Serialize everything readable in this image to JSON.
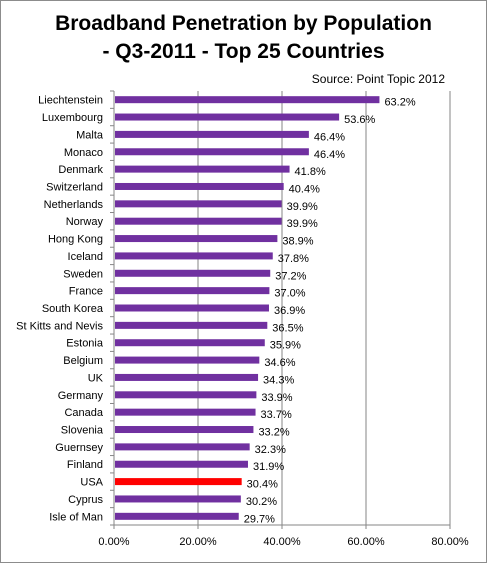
{
  "chart_data": {
    "type": "bar",
    "orientation": "horizontal",
    "title_line1": "Broadband Penetration by Population",
    "title_line2": "- Q3-2011 - Top 25 Countries",
    "source": "Source: Point Topic 2012",
    "categories": [
      "Liechtenstein",
      "Luxembourg",
      "Malta",
      "Monaco",
      "Denmark",
      "Switzerland",
      "Netherlands",
      "Norway",
      "Hong Kong",
      "Iceland",
      "Sweden",
      "France",
      "South Korea",
      "St Kitts and Nevis",
      "Estonia",
      "Belgium",
      "UK",
      "Germany",
      "Canada",
      "Slovenia",
      "Guernsey",
      "Finland",
      "USA",
      "Cyprus",
      "Isle of Man"
    ],
    "values": [
      63.2,
      53.6,
      46.4,
      46.4,
      41.8,
      40.4,
      39.9,
      39.9,
      38.9,
      37.8,
      37.2,
      37.0,
      36.9,
      36.5,
      35.9,
      34.6,
      34.3,
      33.9,
      33.7,
      33.2,
      32.3,
      31.9,
      30.4,
      30.2,
      29.7
    ],
    "value_labels": [
      "63.2%",
      "53.6%",
      "46.4%",
      "46.4%",
      "41.8%",
      "40.4%",
      "39.9%",
      "39.9%",
      "38.9%",
      "37.8%",
      "37.2%",
      "37.0%",
      "36.9%",
      "36.5%",
      "35.9%",
      "34.6%",
      "34.3%",
      "33.9%",
      "33.7%",
      "33.2%",
      "32.3%",
      "31.9%",
      "30.4%",
      "30.2%",
      "29.7%"
    ],
    "x_ticks": [
      "0.00%",
      "20.00%",
      "40.00%",
      "60.00%",
      "80.00%"
    ],
    "xlim": [
      0,
      80
    ],
    "grid": true,
    "highlight": "USA",
    "colors": {
      "bar": "#7030a0",
      "highlight": "#ff0000",
      "grid": "#868686"
    }
  }
}
